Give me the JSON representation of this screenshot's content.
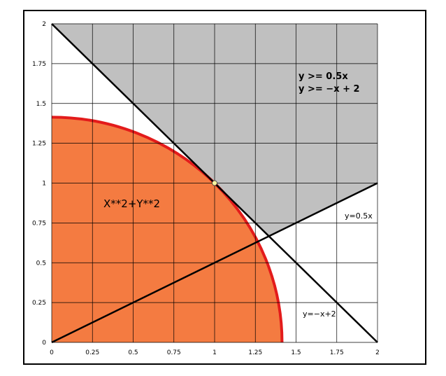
{
  "chart_data": {
    "type": "line",
    "title": "",
    "xlabel": "",
    "ylabel": "",
    "xlim": [
      0,
      2
    ],
    "ylim": [
      0,
      2
    ],
    "grid": true,
    "x_ticks": [
      "0",
      "0.25",
      "0.5",
      "0.75",
      "1",
      "1.25",
      "1.5",
      "1.75",
      "2"
    ],
    "y_ticks": [
      "0",
      "0.25",
      "0.5",
      "0.75",
      "1",
      "1.25",
      "1.5",
      "1.75",
      "2"
    ],
    "x_tick_values": [
      0,
      0.25,
      0.5,
      0.75,
      1,
      1.25,
      1.5,
      1.75,
      2
    ],
    "y_tick_values": [
      0,
      0.25,
      0.5,
      0.75,
      1,
      1.25,
      1.5,
      1.75,
      2
    ],
    "series": [
      {
        "name": "y=0.5x",
        "x": [
          0,
          2
        ],
        "y": [
          0,
          1
        ],
        "color": "#000000"
      },
      {
        "name": "y=-x+2",
        "x": [
          0,
          2
        ],
        "y": [
          2,
          0
        ],
        "color": "#000000"
      },
      {
        "name": "X**2+Y**2",
        "radius": 1.414,
        "color": "#e31b1b",
        "fill": "#f47b41"
      }
    ],
    "feasible_region": {
      "conditions": [
        "y >= 0.5x",
        "y >= -x + 2"
      ],
      "polygon": [
        [
          0,
          2
        ],
        [
          2,
          2
        ],
        [
          2,
          1
        ],
        [
          1.333,
          0.667
        ],
        [
          0,
          2
        ]
      ],
      "color": "#c0c0c0"
    },
    "highlight_point": {
      "x": 1,
      "y": 1,
      "color": "#fff4a0"
    },
    "annotations": {
      "region_line1": "y >= 0.5x",
      "region_line2": "y >= −x + 2",
      "circle_label": "X**2+Y**2",
      "line1_label": "y=0.5x",
      "line2_label": "y=−x+2"
    },
    "colors": {
      "grid": "#000000",
      "region": "#c0c0c0",
      "circle_fill": "#f47b41",
      "circle_stroke": "#e31b1b"
    }
  }
}
